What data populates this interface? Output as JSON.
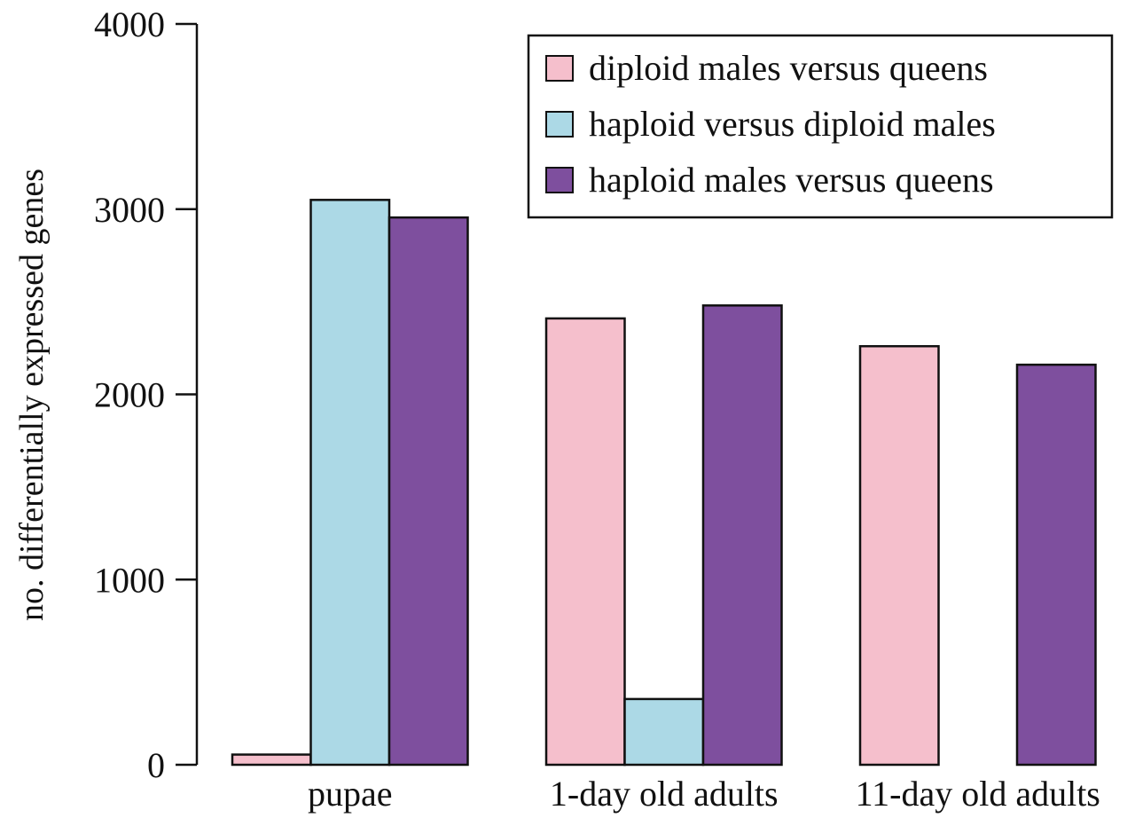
{
  "chart_data": {
    "type": "bar",
    "title": "",
    "xlabel": "",
    "ylabel": "no. differentially expressed genes",
    "ylim": [
      0,
      4000
    ],
    "yticks": [
      "0",
      "1000",
      "2000",
      "3000",
      "4000"
    ],
    "categories": [
      "pupae",
      "1-day old adults",
      "11-day old adults"
    ],
    "series": [
      {
        "name": "diploid males versus queens",
        "color": "#f5bfcc",
        "values": [
          55,
          2410,
          2260
        ]
      },
      {
        "name": "haploid versus diploid males",
        "color": "#acd9e6",
        "values": [
          3050,
          355,
          0
        ]
      },
      {
        "name": "haploid males versus queens",
        "color": "#7e4f9e",
        "values": [
          2955,
          2480,
          2160
        ]
      }
    ],
    "legend_position": "top-right",
    "grid": false
  }
}
